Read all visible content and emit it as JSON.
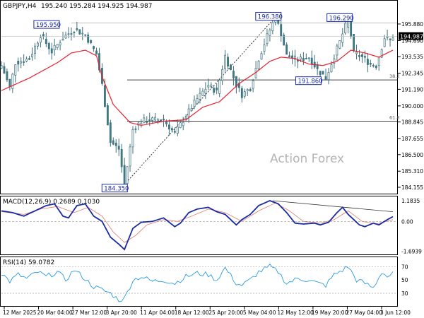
{
  "chart_data": [
    {
      "type": "candlestick",
      "symbol_label": "GBPJPY,H4",
      "ohlc_label": "195.240 195.284 194.925 194.987",
      "watermark": "Action Forex",
      "ylim": [
        183.8,
        197.4
      ],
      "y_ticks": [
        "195.880",
        "194.690",
        "193.535",
        "192.345",
        "191.190",
        "190.000",
        "188.845",
        "187.655",
        "186.500",
        "185.310",
        "184.155"
      ],
      "last_price": "194.987",
      "series": [
        {
          "name": "price",
          "color": "#3d7c89"
        },
        {
          "name": "moving-average",
          "color": "#e8202e"
        }
      ],
      "price_anchors": [
        [
          0,
          192.9
        ],
        [
          3,
          191.3
        ],
        [
          5,
          193.1
        ],
        [
          10,
          193.4
        ],
        [
          14,
          195.1
        ],
        [
          18,
          193.9
        ],
        [
          22,
          194.9
        ],
        [
          26,
          195.5
        ],
        [
          30,
          195.1
        ],
        [
          34,
          193.7
        ],
        [
          36,
          191.5
        ],
        [
          39,
          187.4
        ],
        [
          42,
          186.9
        ],
        [
          44,
          184.35
        ],
        [
          47,
          188.3
        ],
        [
          50,
          188.9
        ],
        [
          54,
          189.0
        ],
        [
          58,
          189.0
        ],
        [
          62,
          188.0
        ],
        [
          66,
          189.3
        ],
        [
          70,
          190.5
        ],
        [
          74,
          191.5
        ],
        [
          77,
          191.0
        ],
        [
          80,
          193.6
        ],
        [
          84,
          191.5
        ],
        [
          86,
          190.8
        ],
        [
          89,
          191.3
        ],
        [
          92,
          193.4
        ],
        [
          95,
          195.0
        ],
        [
          98,
          196.38
        ],
        [
          100,
          195.2
        ],
        [
          102,
          193.6
        ],
        [
          106,
          193.3
        ],
        [
          110,
          193.5
        ],
        [
          113,
          192.6
        ],
        [
          116,
          192.0
        ],
        [
          119,
          193.6
        ],
        [
          121,
          194.6
        ],
        [
          124,
          196.29
        ],
        [
          126,
          193.8
        ],
        [
          129,
          193.5
        ],
        [
          132,
          193.0
        ],
        [
          134,
          192.9
        ],
        [
          137,
          194.9
        ],
        [
          139,
          194.7
        ],
        [
          140,
          194.99
        ]
      ],
      "ma_anchors": [
        [
          0,
          191.1
        ],
        [
          10,
          192.0
        ],
        [
          20,
          193.1
        ],
        [
          25,
          193.8
        ],
        [
          30,
          194.0
        ],
        [
          34,
          193.6
        ],
        [
          36,
          192.1
        ],
        [
          40,
          190.1
        ],
        [
          46,
          188.8
        ],
        [
          50,
          188.6
        ],
        [
          58,
          188.9
        ],
        [
          66,
          189.0
        ],
        [
          72,
          189.9
        ],
        [
          78,
          190.3
        ],
        [
          85,
          191.6
        ],
        [
          91,
          192.4
        ],
        [
          96,
          193.2
        ],
        [
          100,
          193.5
        ],
        [
          105,
          193.4
        ],
        [
          110,
          193.0
        ],
        [
          115,
          192.9
        ],
        [
          120,
          193.2
        ],
        [
          125,
          194.0
        ],
        [
          130,
          193.8
        ],
        [
          135,
          193.5
        ],
        [
          140,
          194.0
        ]
      ],
      "annotations": {
        "labels": [
          {
            "text": "195.950",
            "i": 25,
            "price": 195.95
          },
          {
            "text": "196.380",
            "i": 98,
            "price": 196.38
          },
          {
            "text": "196.290",
            "i": 124,
            "price": 196.29
          },
          {
            "text": "191.860",
            "i": 106,
            "price": 191.86
          },
          {
            "text": "184.350",
            "i": 40,
            "price": 184.35
          }
        ],
        "fib_levels": [
          {
            "label": "38.2",
            "price": 191.86
          },
          {
            "label": "61.8",
            "price": 188.9
          }
        ],
        "trendline": {
          "from_i": 44,
          "from_price": 184.35,
          "to_i": 98,
          "to_price": 196.38
        }
      }
    },
    {
      "type": "line",
      "name": "MACD(12,26,9) 0.2689 0.1030",
      "ylim": [
        -1.8,
        1.3
      ],
      "y_ticks": [
        "1.1835",
        "0.00",
        "-1.6939"
      ],
      "series": [
        {
          "name": "MACD",
          "color": "#1a2aa5"
        },
        {
          "name": "Signal",
          "color": "#e07c6a"
        }
      ],
      "macd_anchors": [
        [
          0,
          0.6
        ],
        [
          4,
          0.5
        ],
        [
          8,
          0.3
        ],
        [
          12,
          0.6
        ],
        [
          16,
          0.9
        ],
        [
          19,
          1.0
        ],
        [
          22,
          0.3
        ],
        [
          24,
          0.2
        ],
        [
          27,
          0.9
        ],
        [
          30,
          1.0
        ],
        [
          33,
          0.3
        ],
        [
          36,
          0.0
        ],
        [
          39,
          -0.9
        ],
        [
          42,
          -1.3
        ],
        [
          44,
          -1.6
        ],
        [
          47,
          -0.4
        ],
        [
          50,
          -0.05
        ],
        [
          54,
          0.0
        ],
        [
          58,
          0.2
        ],
        [
          62,
          -0.3
        ],
        [
          64,
          -0.1
        ],
        [
          67,
          0.5
        ],
        [
          70,
          0.7
        ],
        [
          74,
          0.8
        ],
        [
          77,
          0.55
        ],
        [
          80,
          0.4
        ],
        [
          82,
          0.1
        ],
        [
          84,
          -0.2
        ],
        [
          86,
          0.1
        ],
        [
          89,
          0.4
        ],
        [
          92,
          0.9
        ],
        [
          96,
          1.18
        ],
        [
          99,
          1.0
        ],
        [
          102,
          0.5
        ],
        [
          105,
          -0.1
        ],
        [
          108,
          -0.15
        ],
        [
          112,
          -0.1
        ],
        [
          114,
          -0.2
        ],
        [
          117,
          -0.05
        ],
        [
          120,
          0.5
        ],
        [
          122,
          0.8
        ],
        [
          124,
          0.4
        ],
        [
          128,
          -0.2
        ],
        [
          130,
          -0.3
        ],
        [
          133,
          -0.1
        ],
        [
          135,
          -0.2
        ],
        [
          138,
          0.1
        ],
        [
          140,
          0.27
        ]
      ],
      "signal_anchors": [
        [
          0,
          0.55
        ],
        [
          8,
          0.4
        ],
        [
          14,
          0.7
        ],
        [
          20,
          0.85
        ],
        [
          26,
          0.5
        ],
        [
          31,
          0.8
        ],
        [
          36,
          0.3
        ],
        [
          40,
          -0.6
        ],
        [
          44,
          -1.2
        ],
        [
          48,
          -0.8
        ],
        [
          52,
          -0.2
        ],
        [
          58,
          0.1
        ],
        [
          63,
          0.0
        ],
        [
          68,
          0.3
        ],
        [
          74,
          0.7
        ],
        [
          80,
          0.5
        ],
        [
          86,
          0.0
        ],
        [
          92,
          0.6
        ],
        [
          98,
          1.05
        ],
        [
          103,
          0.6
        ],
        [
          108,
          0.0
        ],
        [
          114,
          -0.1
        ],
        [
          119,
          0.1
        ],
        [
          124,
          0.6
        ],
        [
          129,
          0.0
        ],
        [
          134,
          -0.15
        ],
        [
          140,
          0.1
        ]
      ],
      "trendline": {
        "from_i": 97,
        "from_val": 1.18,
        "to_i": 140,
        "to_val": 0.55
      }
    },
    {
      "type": "line",
      "name": "RSI(14) 59.0782",
      "ylim": [
        12,
        82
      ],
      "y_ticks": [
        "70",
        "50",
        "30"
      ],
      "series": [
        {
          "name": "RSI",
          "color": "#2a9be0"
        }
      ],
      "levels": [
        70,
        30
      ],
      "rsi_anchors": [
        [
          0,
          60
        ],
        [
          3,
          48
        ],
        [
          6,
          58
        ],
        [
          9,
          52
        ],
        [
          13,
          62
        ],
        [
          16,
          55
        ],
        [
          20,
          62
        ],
        [
          23,
          50
        ],
        [
          26,
          65
        ],
        [
          29,
          55
        ],
        [
          33,
          40
        ],
        [
          36,
          35
        ],
        [
          39,
          30
        ],
        [
          42,
          20
        ],
        [
          44,
          22
        ],
        [
          47,
          50
        ],
        [
          50,
          55
        ],
        [
          54,
          48
        ],
        [
          58,
          50
        ],
        [
          62,
          45
        ],
        [
          66,
          55
        ],
        [
          70,
          60
        ],
        [
          74,
          58
        ],
        [
          77,
          50
        ],
        [
          80,
          68
        ],
        [
          84,
          45
        ],
        [
          86,
          42
        ],
        [
          89,
          50
        ],
        [
          92,
          62
        ],
        [
          96,
          70
        ],
        [
          99,
          62
        ],
        [
          102,
          45
        ],
        [
          106,
          52
        ],
        [
          110,
          50
        ],
        [
          113,
          45
        ],
        [
          116,
          42
        ],
        [
          119,
          58
        ],
        [
          122,
          65
        ],
        [
          124,
          70
        ],
        [
          127,
          50
        ],
        [
          130,
          45
        ],
        [
          133,
          38
        ],
        [
          136,
          62
        ],
        [
          138,
          55
        ],
        [
          140,
          59
        ]
      ]
    }
  ],
  "x_labels": [
    "12 Mar 2025",
    "20 Mar 04:00",
    "27 Mar 12:00",
    "3 Apr 20:00",
    "11 Apr 04:00",
    "18 Apr 12:00",
    "25 Apr 20:00",
    "5 May 04:00",
    "12 May 12:00",
    "19 May 20:00",
    "27 May 04:00",
    "3 Jun 12:00"
  ]
}
